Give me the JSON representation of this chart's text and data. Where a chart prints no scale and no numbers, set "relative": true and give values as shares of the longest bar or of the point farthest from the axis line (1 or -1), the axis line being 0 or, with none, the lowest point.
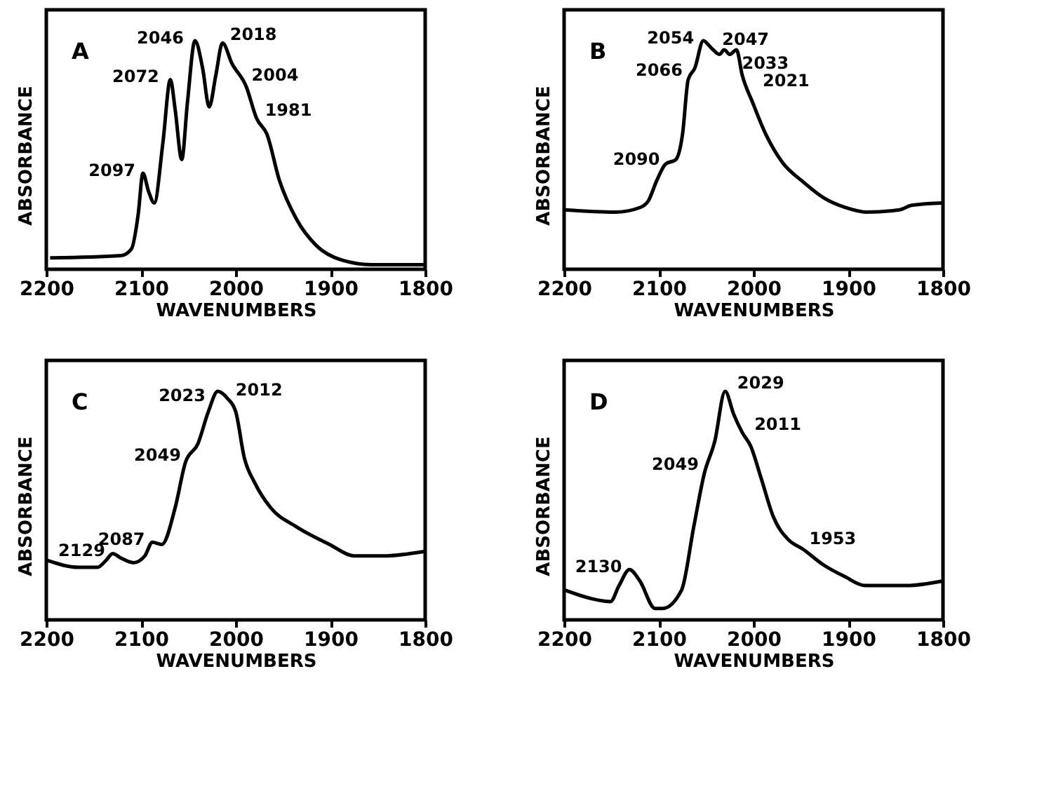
{
  "chart_data": [
    {
      "type": "line",
      "title": "A",
      "xlabel": "WAVENUMBERS",
      "ylabel": "ABSORBANCE",
      "relative": true,
      "tick_labels": "x",
      "grid": false,
      "line_style": "solid",
      "xlim": [
        2200,
        1800
      ],
      "xticks": [
        2200,
        2100,
        2000,
        1900,
        1800
      ],
      "x": [
        2196,
        2121,
        2110,
        2103,
        2098,
        2092,
        2086,
        2077,
        2069,
        2064,
        2057,
        2051,
        2043,
        2035,
        2028,
        2021,
        2014,
        2004,
        1989,
        1978,
        1967,
        1954,
        1936,
        1914,
        1888,
        1857,
        1800
      ],
      "series": [
        {
          "color": "#000000",
          "values": [
            0.05,
            0.06,
            0.09,
            0.24,
            0.42,
            0.34,
            0.29,
            0.55,
            0.83,
            0.7,
            0.48,
            0.73,
            1.0,
            0.88,
            0.71,
            0.85,
            0.99,
            0.9,
            0.8,
            0.66,
            0.59,
            0.39,
            0.22,
            0.1,
            0.04,
            0.02,
            0.02
          ]
        }
      ],
      "annotations": [
        {
          "text": "2097",
          "x": 2097,
          "y": 0.42
        },
        {
          "text": "2072",
          "x": 2072,
          "y": 0.83
        },
        {
          "text": "2046",
          "x": 2046,
          "y": 1.0
        },
        {
          "text": "2018",
          "x": 2018,
          "y": 0.99
        },
        {
          "text": "2004",
          "x": 2004,
          "y": 0.9
        },
        {
          "text": "1981",
          "x": 1981,
          "y": 0.66
        }
      ]
    },
    {
      "type": "line",
      "title": "B",
      "xlabel": "WAVENUMBERS",
      "ylabel": "ABSORBANCE",
      "relative": true,
      "tick_labels": "x",
      "grid": false,
      "line_style": "solid",
      "xlim": [
        2200,
        1800
      ],
      "xticks": [
        2200,
        2100,
        2000,
        1900,
        1800
      ],
      "x": [
        2199,
        2146,
        2120,
        2111,
        2102,
        2093,
        2082,
        2075,
        2069,
        2062,
        2053,
        2045,
        2036,
        2031,
        2025,
        2018,
        2012,
        2001,
        1987,
        1970,
        1947,
        1925,
        1903,
        1881,
        1846,
        1833,
        1800
      ],
      "series": [
        {
          "color": "#000000",
          "values": [
            0.26,
            0.25,
            0.27,
            0.3,
            0.39,
            0.46,
            0.48,
            0.59,
            0.83,
            0.88,
            1.0,
            0.97,
            0.94,
            0.96,
            0.94,
            0.96,
            0.85,
            0.73,
            0.59,
            0.47,
            0.38,
            0.31,
            0.27,
            0.25,
            0.26,
            0.28,
            0.29
          ]
        }
      ],
      "annotations": [
        {
          "text": "2090",
          "x": 2090,
          "y": 0.47
        },
        {
          "text": "2066",
          "x": 2066,
          "y": 0.86
        },
        {
          "text": "2054",
          "x": 2054,
          "y": 1.0
        },
        {
          "text": "2047",
          "x": 2045,
          "y": 0.97
        },
        {
          "text": "2033",
          "x": 2033,
          "y": 0.95
        },
        {
          "text": "2021",
          "x": 2020,
          "y": 0.96
        }
      ]
    },
    {
      "type": "line",
      "title": "C",
      "xlabel": "WAVENUMBERS",
      "ylabel": "ABSORBANCE",
      "relative": true,
      "tick_labels": "x",
      "grid": false,
      "line_style": "solid",
      "xlim": [
        2200,
        1800
      ],
      "xticks": [
        2200,
        2100,
        2000,
        1900,
        1800
      ],
      "x": [
        2199,
        2166,
        2146,
        2137,
        2130,
        2121,
        2108,
        2096,
        2088,
        2078,
        2064,
        2053,
        2040,
        2029,
        2019,
        2009,
        2000,
        1991,
        1980,
        1963,
        1937,
        1901,
        1875,
        1844,
        1800
      ],
      "series": [
        {
          "color": "#000000",
          "values": [
            0.26,
            0.23,
            0.23,
            0.26,
            0.29,
            0.27,
            0.25,
            0.28,
            0.34,
            0.33,
            0.49,
            0.69,
            0.77,
            0.91,
            1.0,
            0.97,
            0.91,
            0.71,
            0.6,
            0.49,
            0.41,
            0.33,
            0.28,
            0.28,
            0.3
          ]
        }
      ],
      "annotations": [
        {
          "text": "2129",
          "x": 2129,
          "y": 0.29
        },
        {
          "text": "2087",
          "x": 2087,
          "y": 0.34
        },
        {
          "text": "2049",
          "x": 2049,
          "y": 0.71
        },
        {
          "text": "2023",
          "x": 2023,
          "y": 0.97
        },
        {
          "text": "2012",
          "x": 2012,
          "y": 0.97
        }
      ]
    },
    {
      "type": "line",
      "title": "D",
      "xlabel": "WAVENUMBERS",
      "ylabel": "ABSORBANCE",
      "relative": true,
      "tick_labels": "x",
      "grid": false,
      "line_style": "solid",
      "xlim": [
        2200,
        1800
      ],
      "xticks": [
        2200,
        2100,
        2000,
        1900,
        1800
      ],
      "x": [
        2199,
        2168,
        2151,
        2142,
        2131,
        2120,
        2104,
        2096,
        2076,
        2063,
        2052,
        2041,
        2030,
        2021,
        2012,
        2003,
        1992,
        1979,
        1963,
        1948,
        1926,
        1904,
        1882,
        1838,
        1800
      ],
      "series": [
        {
          "color": "#000000",
          "values": [
            0.13,
            0.09,
            0.08,
            0.15,
            0.22,
            0.17,
            0.05,
            0.05,
            0.13,
            0.41,
            0.64,
            0.78,
            1.0,
            0.9,
            0.82,
            0.76,
            0.62,
            0.45,
            0.35,
            0.31,
            0.24,
            0.19,
            0.15,
            0.15,
            0.17
          ]
        }
      ],
      "annotations": [
        {
          "text": "2130",
          "x": 2130,
          "y": 0.22
        },
        {
          "text": "2049",
          "x": 2049,
          "y": 0.67
        },
        {
          "text": "2029",
          "x": 2029,
          "y": 1.0
        },
        {
          "text": "2011",
          "x": 2011,
          "y": 0.82
        },
        {
          "text": "1953",
          "x": 1953,
          "y": 0.32
        }
      ]
    }
  ]
}
